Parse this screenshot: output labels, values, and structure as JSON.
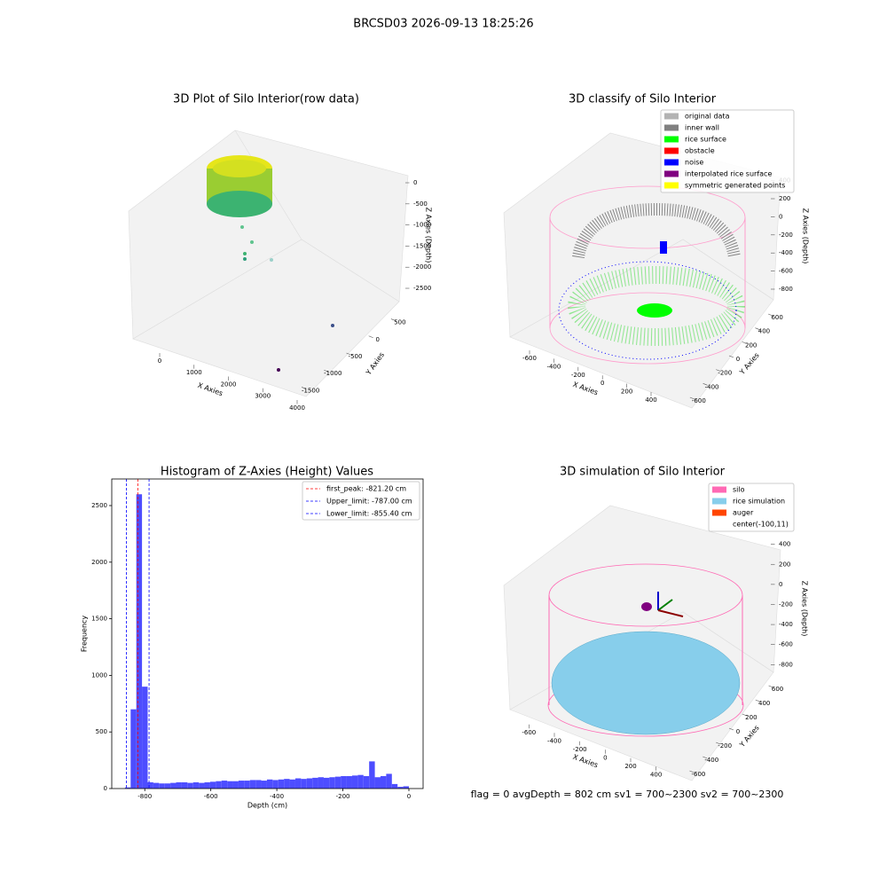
{
  "title": "BRCSD03 2026-09-13 18:25:26",
  "annotation": "flag = 0     avgDepth = 802 cm  sv1 = 700~2300  sv2 = 700~2300",
  "chart_data": [
    {
      "type": "scatter3d",
      "title": "3D Plot of Silo Interior(row data)",
      "xlabel": "X Axies",
      "ylabel": "Y Axies",
      "zlabel": "Z Axies (Depth)",
      "xlim": [
        -700,
        4200
      ],
      "ylim": [
        -1800,
        800
      ],
      "zlim": [
        -2800,
        200
      ],
      "xticks": [
        0,
        1000,
        2000,
        3000,
        4000
      ],
      "yticks": [
        -1500,
        -1000,
        -500,
        0,
        500
      ],
      "zticks": [
        0,
        -500,
        -1000,
        -1500,
        -2000,
        -2500
      ]
    },
    {
      "type": "scatter3d",
      "title": "3D classify of Silo Interior",
      "xlabel": "X Axies",
      "ylabel": "Y Axies",
      "zlabel": "Z Axies (Depth)",
      "xlim": [
        -700,
        500
      ],
      "ylim": [
        -700,
        700
      ],
      "zlim": [
        -900,
        450
      ],
      "xticks": [
        -600,
        -400,
        -200,
        0,
        200,
        400
      ],
      "yticks": [
        -600,
        -400,
        -200,
        0,
        200,
        400,
        600
      ],
      "zticks": [
        400,
        200,
        0,
        -200,
        -400,
        -600,
        -800
      ],
      "legend": [
        {
          "name": "original data",
          "color": "#b3b3b3"
        },
        {
          "name": "inner wall",
          "color": "#808080"
        },
        {
          "name": "rice surface",
          "color": "#00ff00"
        },
        {
          "name": "obstacle",
          "color": "#ff0000"
        },
        {
          "name": "noise",
          "color": "#0000ff"
        },
        {
          "name": "interpolated rice surface",
          "color": "#800080"
        },
        {
          "name": "symmetric generated points",
          "color": "#ffff00"
        }
      ]
    },
    {
      "type": "hist",
      "title": "Histogram of Z-Axies (Height) Values",
      "xlabel": "Depth (cm)",
      "ylabel": "Frequency",
      "color": "#4d4dff",
      "bins": [
        -860,
        -842.8,
        -825.6,
        -808.4,
        -791.2,
        -774,
        -756.8,
        -739.6,
        -722.4,
        -705.2,
        -688,
        -670.8,
        -653.6,
        -636.4,
        -619.2,
        -602,
        -584.8,
        -567.6,
        -550.4,
        -533.2,
        -516,
        -498.8,
        -481.6,
        -464.4,
        -447.2,
        -430,
        -412.8,
        -395.6,
        -378.4,
        -361.2,
        -344,
        -326.8,
        -309.6,
        -292.4,
        -275.2,
        -258,
        -240.8,
        -223.6,
        -206.4,
        -189.2,
        -172,
        -154.8,
        -137.6,
        -120.4,
        -103.2,
        -86,
        -68.8,
        -51.6,
        -34.4,
        -17.2,
        0
      ],
      "counts": [
        10,
        700,
        2600,
        900,
        55,
        50,
        45,
        45,
        50,
        55,
        55,
        50,
        55,
        50,
        55,
        60,
        65,
        70,
        65,
        65,
        70,
        70,
        75,
        75,
        70,
        80,
        75,
        80,
        85,
        80,
        90,
        85,
        90,
        95,
        100,
        95,
        100,
        105,
        110,
        110,
        115,
        120,
        110,
        240,
        100,
        110,
        130,
        40,
        15,
        20
      ],
      "xlim": [
        -900,
        43
      ],
      "ylim": [
        0,
        2735
      ],
      "xticks": [
        -800,
        -600,
        -400,
        -200,
        0
      ],
      "yticks": [
        0,
        500,
        1000,
        1500,
        2000,
        2500
      ],
      "vlines": [
        {
          "value": -821.2,
          "label": "first_peak: -821.20 cm",
          "color": "#ff0000"
        },
        {
          "value": -787,
          "label": "Upper_limit: -787.00 cm",
          "color": "#0000ff"
        },
        {
          "value": -855.4,
          "label": "Lower_limit: -855.40 cm",
          "color": "#0000ff"
        }
      ]
    },
    {
      "type": "scatter3d",
      "title": "3D simulation of Silo Interior",
      "xlabel": "X Axies",
      "ylabel": "Y Axies",
      "zlabel": "Z Axies (Depth)",
      "xlim": [
        -700,
        500
      ],
      "ylim": [
        -700,
        700
      ],
      "zlim": [
        -900,
        450
      ],
      "xticks": [
        -600,
        -400,
        -200,
        0,
        200,
        400
      ],
      "yticks": [
        -600,
        -400,
        -200,
        0,
        200,
        400,
        600
      ],
      "zticks": [
        400,
        200,
        0,
        -200,
        -400,
        -600,
        -800
      ],
      "legend": [
        {
          "name": "silo",
          "color": "#ff69b4"
        },
        {
          "name": "rice simulation",
          "color": "#87ceeb"
        },
        {
          "name": "auger",
          "color": "#ff4500"
        },
        {
          "name": "center(-100,11)",
          "color": "#ffffff"
        }
      ]
    }
  ]
}
